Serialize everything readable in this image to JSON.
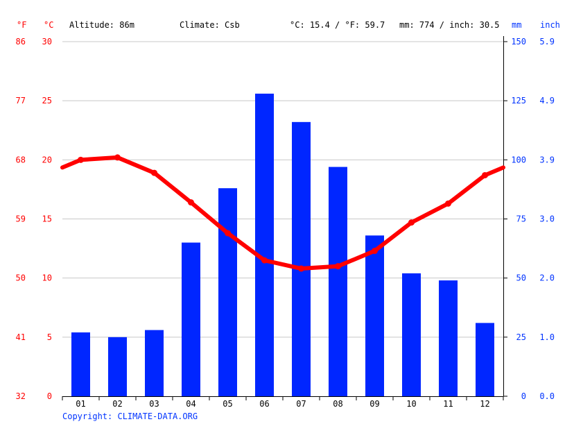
{
  "header": {
    "unit_f": "°F",
    "unit_c": "°C",
    "altitude": "Altitude: 86m",
    "climate": "Climate: Csb",
    "temp_avg": "°C: 15.4 / °F: 59.7",
    "precip_total": "mm: 774 / inch: 30.5",
    "unit_mm": "mm",
    "unit_inch": "inch"
  },
  "copyright": "Copyright: CLIMATE-DATA.ORG",
  "colors": {
    "temperature": "#ff0000",
    "precipitation": "#0026ff",
    "grid": "#c8c8c8"
  },
  "chart_data": {
    "type": "bar",
    "categories": [
      "01",
      "02",
      "03",
      "04",
      "05",
      "06",
      "07",
      "08",
      "09",
      "10",
      "11",
      "12"
    ],
    "series": [
      {
        "type": "bar",
        "axis": "right-mm",
        "values": [
          27,
          25,
          28,
          65,
          88,
          128,
          116,
          97,
          68,
          52,
          49,
          31
        ]
      },
      {
        "type": "line",
        "axis": "left-celsius",
        "values": [
          20.0,
          20.2,
          18.9,
          16.4,
          13.8,
          11.5,
          10.8,
          11.0,
          12.3,
          14.7,
          16.3,
          18.7
        ]
      }
    ],
    "axes": {
      "left_f": {
        "ticks": [
          "86",
          "77",
          "68",
          "59",
          "50",
          "41",
          "32"
        ]
      },
      "left_c": {
        "ticks": [
          "30",
          "25",
          "20",
          "15",
          "10",
          "5",
          "0"
        ],
        "range": [
          0,
          30
        ]
      },
      "right_mm": {
        "ticks": [
          "150",
          "125",
          "100",
          "75",
          "50",
          "25",
          "0"
        ],
        "range": [
          0,
          150
        ]
      },
      "right_inch": {
        "ticks": [
          "5.9",
          "4.9",
          "3.9",
          "3.0",
          "2.0",
          "1.0",
          "0.0"
        ]
      }
    },
    "grid": true
  }
}
